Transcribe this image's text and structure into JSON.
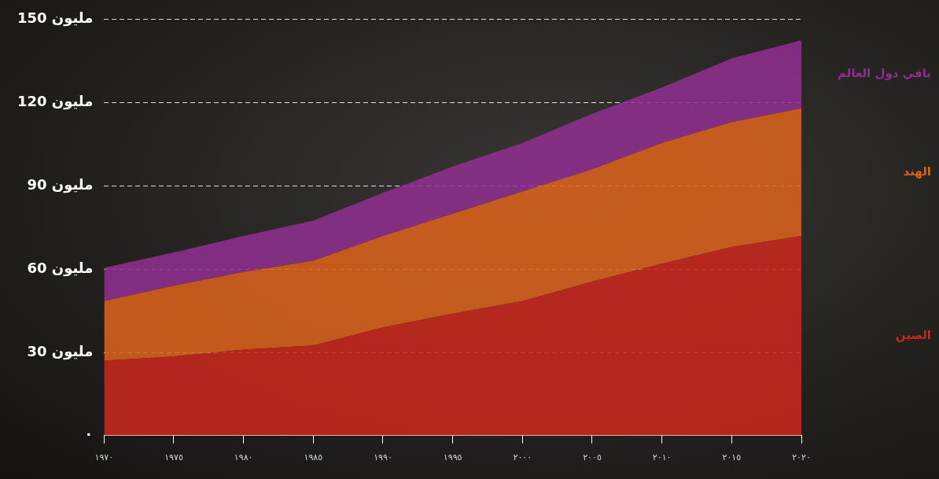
{
  "chart_data": {
    "type": "area",
    "stacked": true,
    "grid": true,
    "categories": [
      "١٩٧٠",
      "١٩٧٥",
      "١٩٨٠",
      "١٩٨٥",
      "١٩٩٠",
      "١٩٩٥",
      "٢٠٠٠",
      "٢٠٠٥",
      "٢٠١٠",
      "٢٠١٥",
      "٢٠٢٠"
    ],
    "series": [
      {
        "name": "الصين",
        "color": "#c8281e",
        "values": [
          27,
          28.5,
          31,
          32.5,
          39,
          44,
          48.5,
          55.5,
          62,
          68,
          72
        ]
      },
      {
        "name": "الهند",
        "color": "#d9621c",
        "values": [
          21.5,
          25.5,
          28,
          30.5,
          33,
          36,
          39.5,
          40.5,
          43.5,
          45,
          46
        ]
      },
      {
        "name": "باقي دول العالم",
        "color": "#8e2f8e",
        "values": [
          12,
          12,
          13,
          14.5,
          15.5,
          17,
          17.5,
          20,
          20,
          23,
          24.5
        ]
      }
    ],
    "ylim": [
      0,
      150
    ],
    "yticks": [
      {
        "value": 0,
        "label": "٠"
      },
      {
        "value": 30,
        "label": "30 مليون"
      },
      {
        "value": 60,
        "label": "60 مليون"
      },
      {
        "value": 90,
        "label": "90 مليون"
      },
      {
        "value": 120,
        "label": "120 مليون"
      },
      {
        "value": 150,
        "label": "150 مليون"
      }
    ]
  }
}
